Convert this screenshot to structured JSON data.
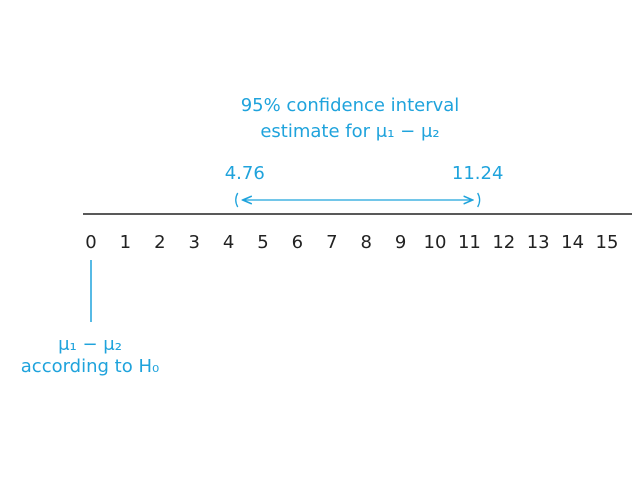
{
  "annotation": {
    "lines": [
      "95% confidence interval",
      "estimate for μ₁ − μ₂"
    ]
  },
  "number_line": {
    "ticks": [
      0,
      1,
      2,
      3,
      4,
      5,
      6,
      7,
      8,
      9,
      10,
      11,
      12,
      13,
      14,
      15
    ]
  },
  "interval": {
    "lower": 4.76,
    "upper": 11.24
  },
  "null_label": {
    "lines": [
      "μ₁ − μ₂",
      "according to H₀"
    ]
  }
}
